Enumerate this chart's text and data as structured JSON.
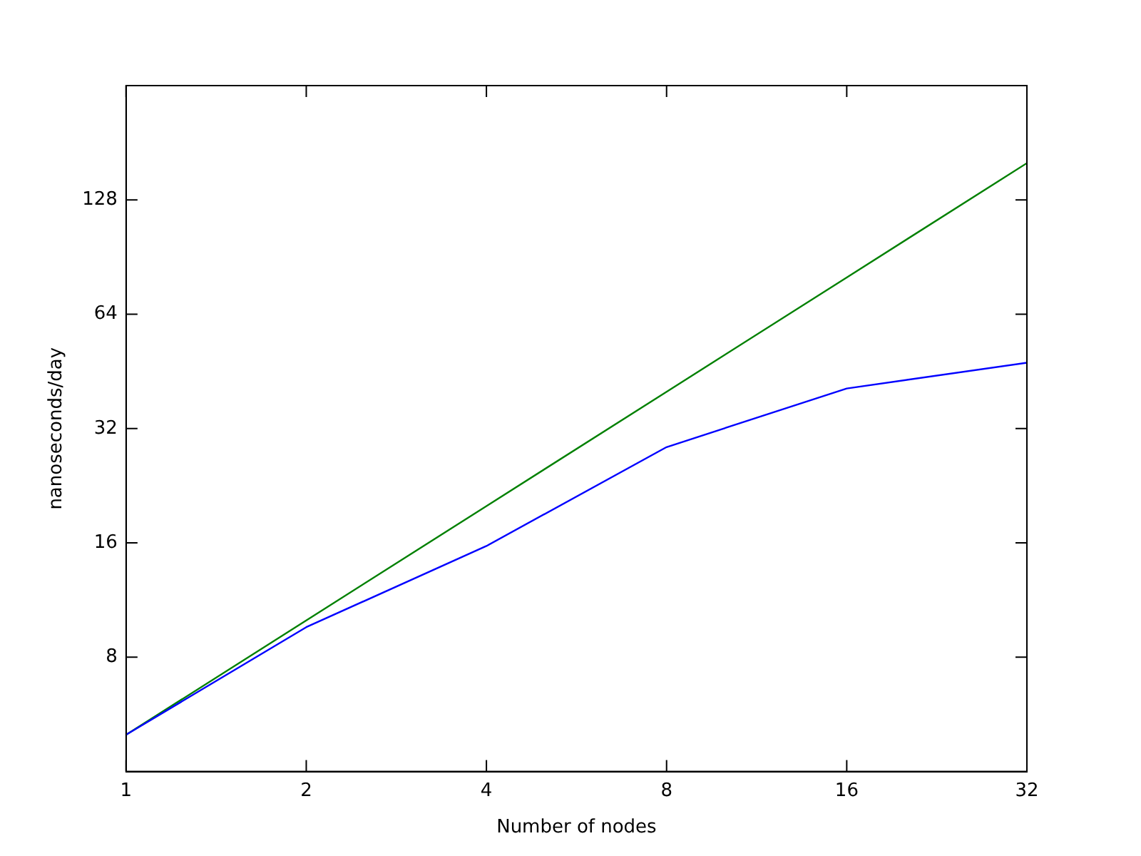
{
  "chart_data": {
    "type": "line",
    "xlabel": "Number of nodes",
    "ylabel": "nanoseconds/day",
    "x": [
      1,
      2,
      4,
      8,
      16,
      32
    ],
    "log": "xy",
    "xlim": [
      1,
      32
    ],
    "xticks": [
      1,
      2,
      4,
      8,
      16,
      32
    ],
    "ylim": [
      4,
      256
    ],
    "yticks": [
      8,
      16,
      32,
      64,
      128
    ],
    "grid": false,
    "legend": false,
    "marker": "none",
    "line_style": "solid",
    "series": [
      {
        "color": "#0000ff",
        "values": [
          5,
          9.6,
          15.7,
          28.6,
          40.8,
          47.7
        ]
      },
      {
        "color": "#008000",
        "values": [
          5,
          10,
          20,
          40,
          80,
          160
        ]
      }
    ]
  }
}
